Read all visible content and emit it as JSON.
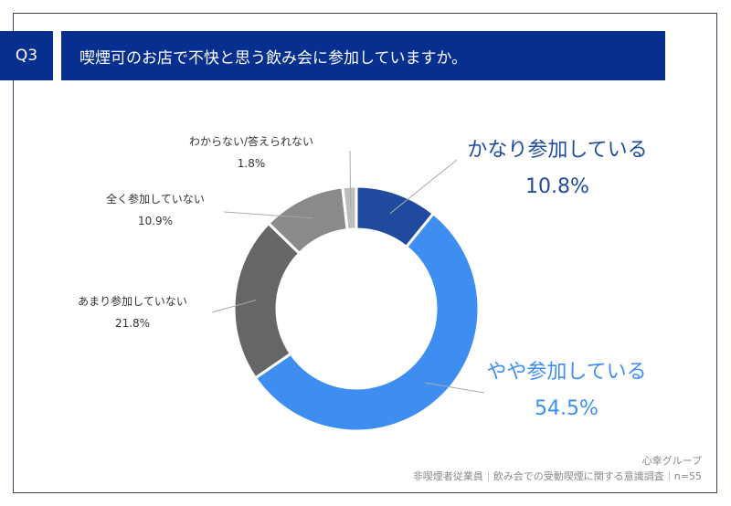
{
  "header": {
    "q_label": "Q3",
    "title": "喫煙可のお店で不快と思う飲み会に参加していますか。"
  },
  "footer": {
    "org": "心幸グループ",
    "source": "非喫煙者従業員｜飲み会での受動喫煙に関する意識調査｜n=55"
  },
  "chart_data": {
    "type": "pie",
    "donut": true,
    "title": "喫煙可のお店で不快と思う飲み会に参加していますか。",
    "slices": [
      {
        "label": "かなり参加している",
        "value": 10.8,
        "display": "10.8%",
        "color": "#1f4a9e"
      },
      {
        "label": "やや参加している",
        "value": 54.5,
        "display": "54.5%",
        "color": "#3d8ef0"
      },
      {
        "label": "あまり参加していない",
        "value": 21.8,
        "display": "21.8%",
        "color": "#666666"
      },
      {
        "label": "全く参加していない",
        "value": 10.9,
        "display": "10.9%",
        "color": "#8a8a8a"
      },
      {
        "label": "わからない/答えられない",
        "value": 1.8,
        "display": "1.8%",
        "color": "#bdbdbd"
      }
    ]
  }
}
